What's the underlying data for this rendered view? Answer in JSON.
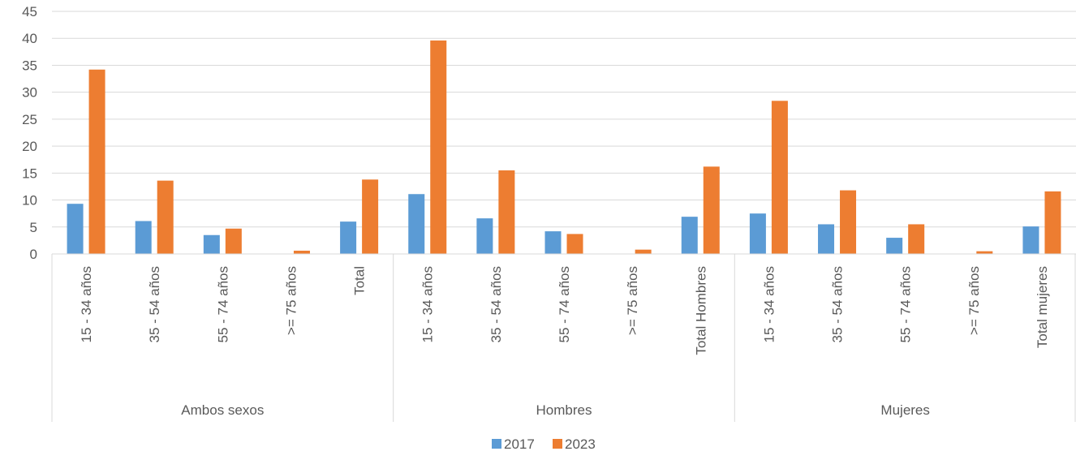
{
  "chart_data": {
    "type": "bar",
    "ylim": [
      0,
      45
    ],
    "yticks": [
      0,
      5,
      10,
      15,
      20,
      25,
      30,
      35,
      40,
      45
    ],
    "grid": true,
    "legend_position": "bottom",
    "groups": [
      {
        "label": "Ambos sexos",
        "categories": [
          "15 - 34 años",
          "35 - 54 años",
          "55 - 74 años",
          ">= 75 años",
          "Total"
        ]
      },
      {
        "label": "Hombres",
        "categories": [
          "15 - 34 años",
          "35 - 54 años",
          "55 - 74 años",
          ">= 75 años",
          "Total Hombres"
        ]
      },
      {
        "label": "Mujeres",
        "categories": [
          "15 - 34 años",
          "35 - 54 años",
          "55 - 74 años",
          ">= 75 años",
          "Total mujeres"
        ]
      }
    ],
    "series": [
      {
        "name": "2017",
        "color": "#5B9BD5",
        "values": [
          9.3,
          6.1,
          3.5,
          0,
          6.0,
          11.1,
          6.6,
          4.2,
          0,
          6.9,
          7.5,
          5.5,
          3.0,
          0,
          5.1
        ]
      },
      {
        "name": "2023",
        "color": "#ED7D31",
        "values": [
          34.2,
          13.6,
          4.7,
          0.6,
          13.8,
          39.6,
          15.5,
          3.7,
          0.8,
          16.2,
          28.4,
          11.8,
          5.5,
          0.5,
          11.6
        ]
      }
    ]
  }
}
